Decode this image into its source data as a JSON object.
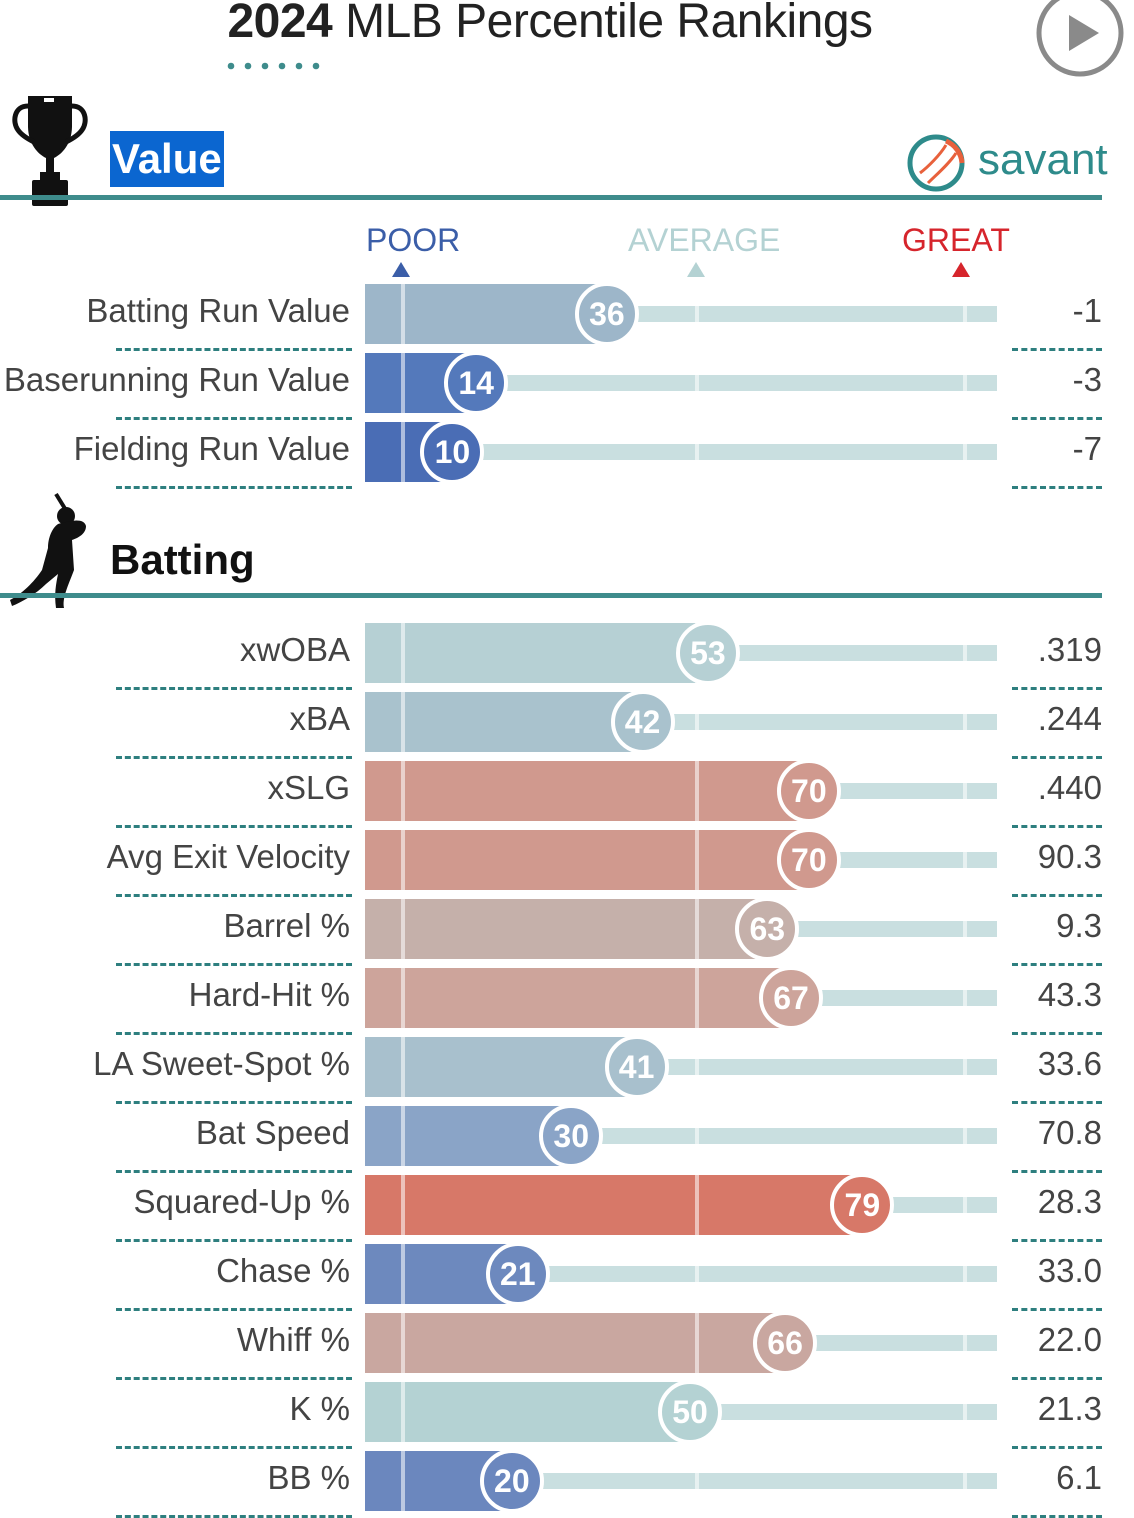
{
  "header": {
    "title_year": "2024",
    "title_rest": " MLB Percentile Rankings"
  },
  "brand": {
    "savant_text": "savant",
    "icon": "savant-baseball-logo"
  },
  "icons": {
    "value_section": "trophy-icon",
    "batting_section": "batter-silhouette-icon",
    "play": "play-icon"
  },
  "colors": {
    "poor": "#3b5ea8",
    "average": "#b4d2d3",
    "great": "#d6252c",
    "teal": "#3e8c8c"
  },
  "scale": {
    "poor": "POOR",
    "average": "AVERAGE",
    "great": "GREAT"
  },
  "chart_data": [
    {
      "type": "bar",
      "title": "Value",
      "xlim": [
        0,
        100
      ],
      "categories": [
        "Batting Run Value",
        "Baserunning Run Value",
        "Fielding Run Value"
      ],
      "values": [
        36,
        14,
        10
      ],
      "stat_values": [
        "-1",
        "-3",
        "-7"
      ],
      "colors": [
        "#9db6c9",
        "#5479bb",
        "#4a6db5"
      ]
    },
    {
      "type": "bar",
      "title": "Batting",
      "xlim": [
        0,
        100
      ],
      "categories": [
        "xwOBA",
        "xBA",
        "xSLG",
        "Avg Exit Velocity",
        "Barrel %",
        "Hard-Hit %",
        "LA Sweet-Spot %",
        "Bat Speed",
        "Squared-Up %",
        "Chase %",
        "Whiff %",
        "K %",
        "BB %"
      ],
      "values": [
        53,
        42,
        70,
        70,
        63,
        67,
        41,
        30,
        79,
        21,
        66,
        50,
        20
      ],
      "stat_values": [
        ".319",
        ".244",
        ".440",
        "90.3",
        "9.3",
        "43.3",
        "33.6",
        "70.8",
        "28.3",
        "33.0",
        "22.0",
        "21.3",
        "6.1"
      ],
      "colors": [
        "#b6d0d4",
        "#a9c2cd",
        "#d0998e",
        "#d0998e",
        "#c5b0aa",
        "#cda49b",
        "#a8c0cd",
        "#8aa4c7",
        "#d77868",
        "#6d89be",
        "#c9a7a0",
        "#b4d2d3",
        "#6b87be"
      ]
    }
  ]
}
